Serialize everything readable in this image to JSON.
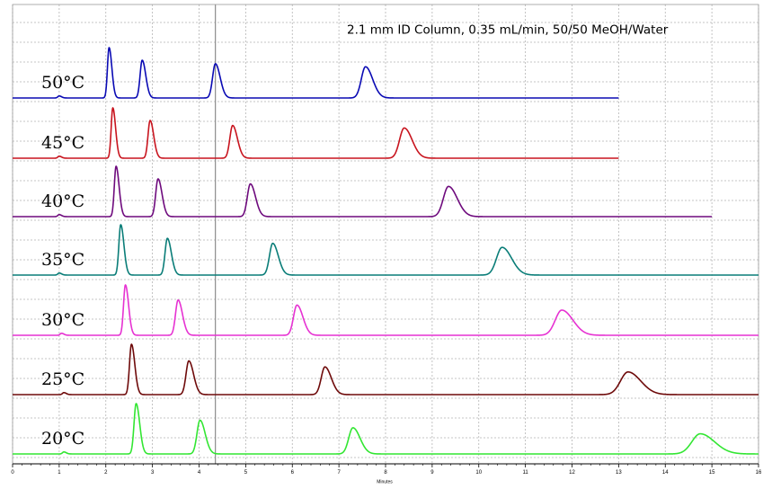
{
  "chart_data": {
    "type": "line",
    "subtitle": "2.1 mm ID Column, 0.35 mL/min, 50/50 MeOH/Water",
    "xlabel": "Minutes",
    "ylabel": "",
    "xlim": [
      0,
      16
    ],
    "x_ticks": [
      "0",
      "1",
      "2",
      "3",
      "4",
      "5",
      "6",
      "7",
      "8",
      "9",
      "10",
      "11",
      "12",
      "13",
      "14",
      "15",
      "16"
    ],
    "grid": true,
    "marker_line_x": 4.35,
    "series": [
      {
        "name": "50°C",
        "color": "#0a0ab4",
        "end_time": 13.0,
        "peaks": [
          {
            "t": 1.0,
            "h": 0.04,
            "w": 0.03
          },
          {
            "t": 2.07,
            "h": 1.0,
            "w": 0.035
          },
          {
            "t": 2.78,
            "h": 0.75,
            "w": 0.045
          },
          {
            "t": 4.35,
            "h": 0.68,
            "w": 0.06
          },
          {
            "t": 7.57,
            "h": 0.62,
            "w": 0.09
          }
        ]
      },
      {
        "name": "45°C",
        "color": "#c8141e",
        "end_time": 13.0,
        "peaks": [
          {
            "t": 1.0,
            "h": 0.04,
            "w": 0.03
          },
          {
            "t": 2.15,
            "h": 1.0,
            "w": 0.035
          },
          {
            "t": 2.95,
            "h": 0.75,
            "w": 0.045
          },
          {
            "t": 4.72,
            "h": 0.65,
            "w": 0.06
          },
          {
            "t": 8.4,
            "h": 0.6,
            "w": 0.1
          }
        ]
      },
      {
        "name": "40°C",
        "color": "#6e0a7d",
        "end_time": 15.0,
        "peaks": [
          {
            "t": 1.0,
            "h": 0.04,
            "w": 0.03
          },
          {
            "t": 2.22,
            "h": 1.0,
            "w": 0.038
          },
          {
            "t": 3.12,
            "h": 0.75,
            "w": 0.05
          },
          {
            "t": 5.1,
            "h": 0.65,
            "w": 0.065
          },
          {
            "t": 9.35,
            "h": 0.6,
            "w": 0.11
          }
        ]
      },
      {
        "name": "35°C",
        "color": "#0a7d78",
        "end_time": 16.0,
        "peaks": [
          {
            "t": 1.0,
            "h": 0.04,
            "w": 0.03
          },
          {
            "t": 2.32,
            "h": 1.0,
            "w": 0.04
          },
          {
            "t": 3.32,
            "h": 0.73,
            "w": 0.05
          },
          {
            "t": 5.58,
            "h": 0.63,
            "w": 0.07
          },
          {
            "t": 10.5,
            "h": 0.55,
            "w": 0.12
          }
        ]
      },
      {
        "name": "30°C",
        "color": "#e632d2",
        "end_time": 16.0,
        "peaks": [
          {
            "t": 1.05,
            "h": 0.04,
            "w": 0.03
          },
          {
            "t": 2.42,
            "h": 1.0,
            "w": 0.04
          },
          {
            "t": 3.55,
            "h": 0.7,
            "w": 0.055
          },
          {
            "t": 6.1,
            "h": 0.6,
            "w": 0.075
          },
          {
            "t": 11.78,
            "h": 0.5,
            "w": 0.14
          }
        ]
      },
      {
        "name": "25°C",
        "color": "#6e0a0a",
        "end_time": 16.0,
        "peaks": [
          {
            "t": 1.1,
            "h": 0.04,
            "w": 0.03
          },
          {
            "t": 2.55,
            "h": 1.0,
            "w": 0.042
          },
          {
            "t": 3.78,
            "h": 0.67,
            "w": 0.06
          },
          {
            "t": 6.7,
            "h": 0.55,
            "w": 0.08
          },
          {
            "t": 13.2,
            "h": 0.45,
            "w": 0.16
          }
        ]
      },
      {
        "name": "20°C",
        "color": "#32e632",
        "end_time": 16.0,
        "peaks": [
          {
            "t": 1.1,
            "h": 0.04,
            "w": 0.03
          },
          {
            "t": 2.65,
            "h": 1.0,
            "w": 0.045
          },
          {
            "t": 4.02,
            "h": 0.67,
            "w": 0.065
          },
          {
            "t": 7.3,
            "h": 0.52,
            "w": 0.09
          },
          {
            "t": 14.75,
            "h": 0.4,
            "w": 0.18
          }
        ]
      }
    ]
  }
}
